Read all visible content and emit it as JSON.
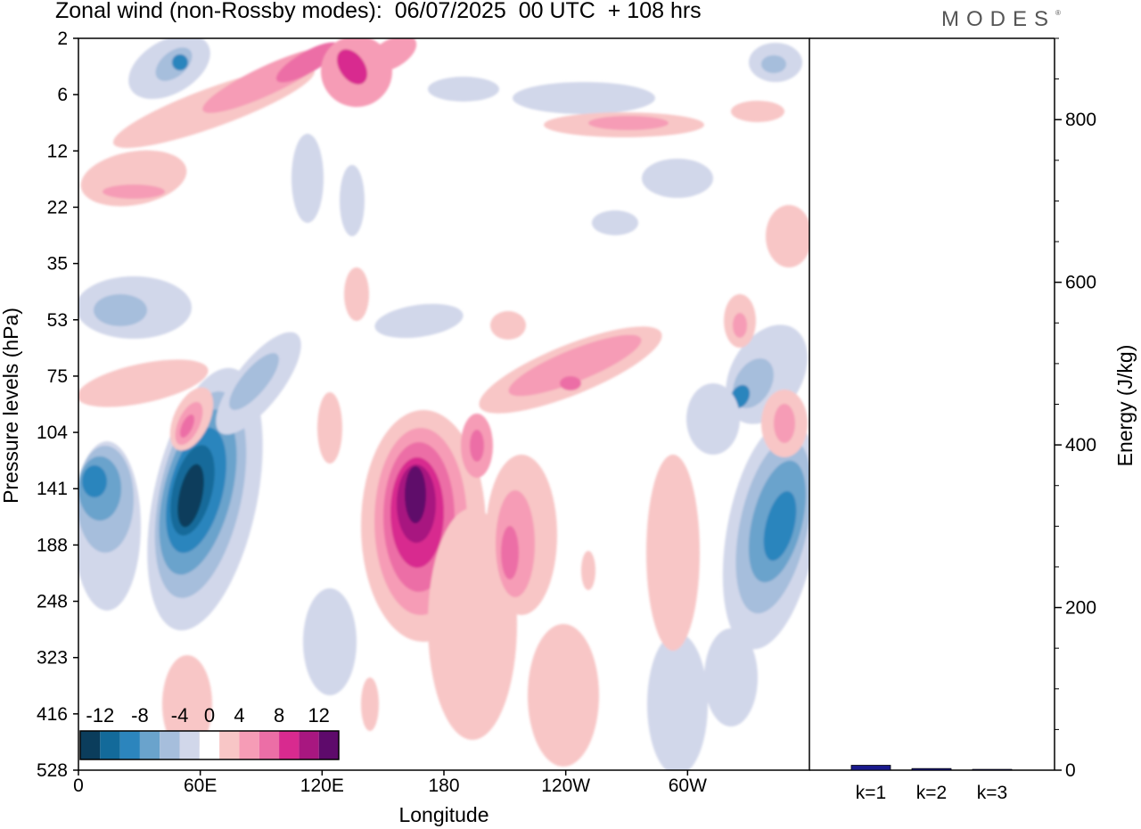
{
  "header": {
    "title": "Zonal wind (non-Rossby modes):  06/07/2025  00 UTC  + 108 hrs",
    "brand": "MODES"
  },
  "chart_data": [
    {
      "type": "heatmap",
      "title": "Zonal wind (non-Rossby modes):  06/07/2025  00 UTC  + 108 hrs",
      "xlabel": "Longitude",
      "ylabel": "Pressure levels (hPa)",
      "x_ticks": [
        "0",
        "60E",
        "120E",
        "180",
        "120W",
        "60W"
      ],
      "y_ticks": [
        "2",
        "6",
        "12",
        "22",
        "35",
        "53",
        "75",
        "104",
        "141",
        "188",
        "248",
        "323",
        "416",
        "528"
      ],
      "x_range": [
        0,
        360
      ],
      "colorbar": {
        "labels": [
          "-12",
          "-8",
          "-4",
          "0",
          "4",
          "8",
          "12"
        ],
        "levels": [
          -14,
          -12,
          -10,
          -8,
          -6,
          -4,
          -2,
          2,
          4,
          6,
          8,
          10,
          12,
          14
        ],
        "colors": [
          "#0b3d5c",
          "#136a9a",
          "#2c85bd",
          "#6aa3cc",
          "#a6bedc",
          "#d1d7ea",
          "#ffffff",
          "#f8c6c6",
          "#f69cb6",
          "#ec6ea6",
          "#d82a8f",
          "#a81780",
          "#5e0a6b"
        ]
      },
      "features": [
        {
          "kind": "negative-core",
          "lon": 57,
          "pressure_hPa": 141,
          "value": -14
        },
        {
          "kind": "negative-core",
          "lon": 10,
          "pressure_hPa": 141,
          "value": -10
        },
        {
          "kind": "negative-core",
          "lon": 340,
          "pressure_hPa": 188,
          "value": -10
        },
        {
          "kind": "positive-core",
          "lon": 167,
          "pressure_hPa": 150,
          "value": 14
        },
        {
          "kind": "positive-core",
          "lon": 213,
          "pressure_hPa": 188,
          "value": 8
        },
        {
          "kind": "positive-core",
          "lon": 50,
          "pressure_hPa": 104,
          "value": 8
        }
      ]
    },
    {
      "type": "bar",
      "categories": [
        "k=1",
        "k=2",
        "k=3"
      ],
      "values": [
        6,
        2,
        1
      ],
      "ylabel": "Energy (J/kg)",
      "y_ticks": [
        "0",
        "200",
        "400",
        "600",
        "800"
      ],
      "ylim": [
        0,
        900
      ],
      "bar_color": "#1a1a8c"
    }
  ]
}
